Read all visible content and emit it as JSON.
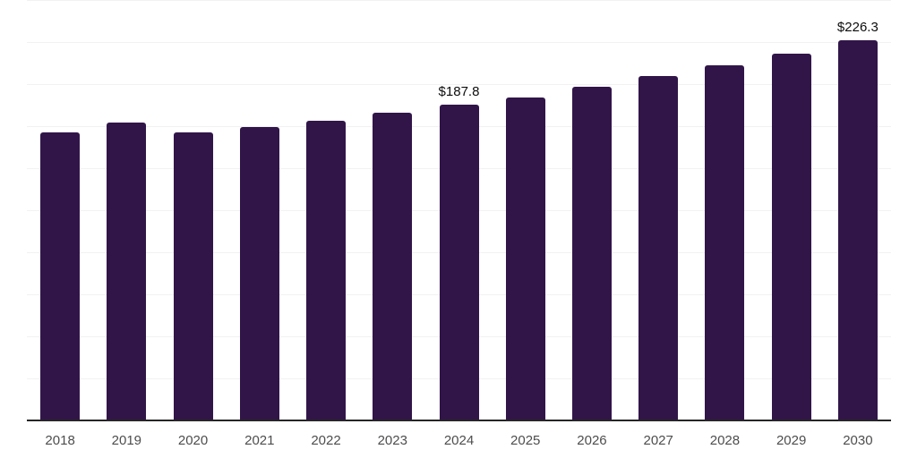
{
  "chart_data": {
    "type": "bar",
    "title": "",
    "xlabel": "",
    "ylabel": "",
    "categories": [
      "2018",
      "2019",
      "2020",
      "2021",
      "2022",
      "2023",
      "2024",
      "2025",
      "2026",
      "2027",
      "2028",
      "2029",
      "2030"
    ],
    "values": [
      171.5,
      177.2,
      171.3,
      174.3,
      178.4,
      183.2,
      187.8,
      192.1,
      198.3,
      204.7,
      211.2,
      218.0,
      226.3
    ],
    "data_labels": [
      "",
      "",
      "",
      "",
      "",
      "",
      "$187.8",
      "",
      "",
      "",
      "",
      "",
      "$226.3"
    ],
    "ylim": [
      0,
      250
    ],
    "gridline_interval": 25,
    "grid": "horizontal",
    "legend_position": "none",
    "colors": {
      "bar": "#311549",
      "gridline": "#f2f2f2",
      "axis_line": "#262626",
      "value_label": "#0d0d0d",
      "tick_label": "#4d4d4d",
      "background": "#ffffff"
    }
  }
}
